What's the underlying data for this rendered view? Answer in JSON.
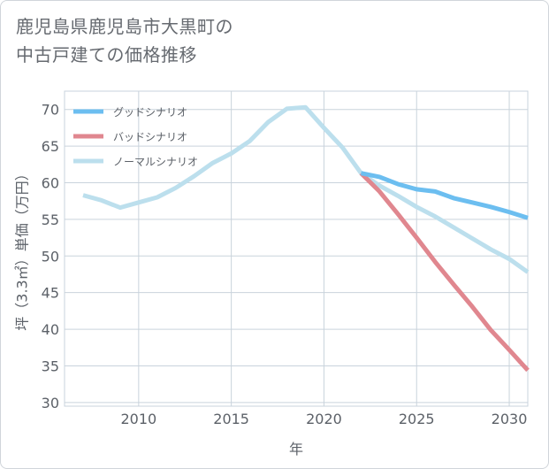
{
  "title": {
    "line1": "鹿児島県鹿児島市大黒町の",
    "line2": "中古戸建ての価格推移"
  },
  "chart_data": {
    "type": "line",
    "xlabel": "年",
    "ylabel": "坪（3.3㎡）単価（万円）",
    "xlim": [
      2006,
      2031
    ],
    "ylim": [
      29.5,
      72.5
    ],
    "xticks": [
      2010,
      2015,
      2020,
      2025,
      2030
    ],
    "yticks": [
      30,
      35,
      40,
      45,
      50,
      55,
      60,
      65,
      70
    ],
    "grid": true,
    "legend_position": "top-left",
    "series": [
      {
        "name": "グッドシナリオ",
        "color": "#6cbef0",
        "x": [
          2022,
          2023,
          2024,
          2025,
          2026,
          2027,
          2028,
          2029,
          2030,
          2031
        ],
        "y": [
          61.3,
          60.8,
          59.8,
          59.1,
          58.8,
          57.9,
          57.3,
          56.7,
          56.0,
          55.2
        ]
      },
      {
        "name": "バッドシナリオ",
        "color": "#e0878f",
        "x": [
          2022,
          2023,
          2024,
          2025,
          2026,
          2027,
          2028,
          2029,
          2030,
          2031
        ],
        "y": [
          61.3,
          58.8,
          55.7,
          52.5,
          49.2,
          46.1,
          43.1,
          39.9,
          37.2,
          34.4
        ]
      },
      {
        "name": "ノーマルシナリオ",
        "color": "#bcdfed",
        "x": [
          2007,
          2008,
          2009,
          2010,
          2011,
          2012,
          2013,
          2014,
          2015,
          2016,
          2017,
          2018,
          2019,
          2020,
          2021,
          2022,
          2023,
          2024,
          2025,
          2026,
          2027,
          2028,
          2029,
          2030,
          2031
        ],
        "y": [
          58.3,
          57.6,
          56.6,
          57.3,
          58.0,
          59.3,
          60.9,
          62.7,
          64.0,
          65.7,
          68.3,
          70.1,
          70.3,
          67.5,
          64.8,
          61.3,
          59.6,
          58.2,
          56.7,
          55.4,
          53.9,
          52.4,
          50.9,
          49.6,
          47.8
        ]
      }
    ]
  }
}
